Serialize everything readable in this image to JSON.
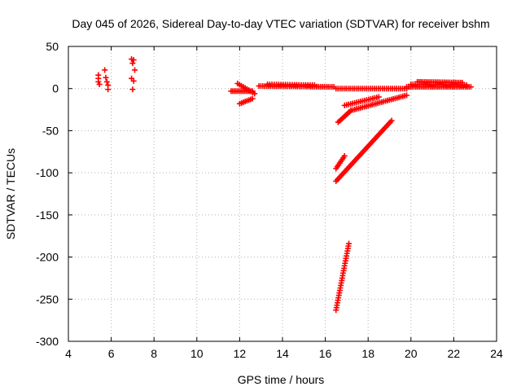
{
  "chart_data": {
    "type": "scatter",
    "title": "Day 045 of 2026, Sidereal Day-to-day VTEC variation (SDTVAR) for receiver bshm",
    "xlabel": "GPS time / hours",
    "ylabel": "SDTVAR / TECUs",
    "xlim": [
      4,
      24
    ],
    "ylim": [
      -300,
      50
    ],
    "xticks": [
      4,
      6,
      8,
      10,
      12,
      14,
      16,
      18,
      20,
      22,
      24
    ],
    "yticks": [
      -300,
      -250,
      -200,
      -150,
      -100,
      -50,
      0,
      50
    ],
    "grid": true,
    "marker": "+",
    "series_color": "#ff0000",
    "series": [
      {
        "name": "SDTVAR",
        "points": [
          [
            5.4,
            16
          ],
          [
            5.4,
            12
          ],
          [
            5.4,
            8
          ],
          [
            5.45,
            5
          ],
          [
            5.7,
            22
          ],
          [
            5.75,
            13
          ],
          [
            5.8,
            8
          ],
          [
            5.85,
            4
          ],
          [
            5.85,
            -1
          ],
          [
            6.95,
            35
          ],
          [
            7.05,
            34
          ],
          [
            7.0,
            30
          ],
          [
            7.1,
            22
          ],
          [
            6.95,
            12
          ],
          [
            7.05,
            9
          ],
          [
            7.0,
            -1
          ]
        ],
        "segments": [
          {
            "x0": 11.6,
            "y0": -3,
            "x1": 12.6,
            "y1": -3,
            "n": 14
          },
          {
            "x0": 11.9,
            "y0": 6,
            "x1": 12.7,
            "y1": -6,
            "n": 10
          },
          {
            "x0": 12.0,
            "y0": -18,
            "x1": 12.6,
            "y1": -12,
            "n": 8
          },
          {
            "x0": 12.9,
            "y0": 3,
            "x1": 16.4,
            "y1": 2,
            "n": 40
          },
          {
            "x0": 13.3,
            "y0": 5,
            "x1": 15.5,
            "y1": 4,
            "n": 22
          },
          {
            "x0": 16.5,
            "y0": 0,
            "x1": 19.8,
            "y1": 0,
            "n": 36
          },
          {
            "x0": 16.6,
            "y0": -40,
            "x1": 17.2,
            "y1": -26,
            "n": 10
          },
          {
            "x0": 17.2,
            "y0": -26,
            "x1": 19.8,
            "y1": -8,
            "n": 30
          },
          {
            "x0": 16.9,
            "y0": -20,
            "x1": 18.5,
            "y1": -10,
            "n": 18
          },
          {
            "x0": 16.5,
            "y0": -95,
            "x1": 16.9,
            "y1": -80,
            "n": 8
          },
          {
            "x0": 16.5,
            "y0": -110,
            "x1": 19.1,
            "y1": -38,
            "n": 40
          },
          {
            "x0": 16.5,
            "y0": -263,
            "x1": 17.1,
            "y1": -184,
            "n": 28
          },
          {
            "x0": 19.8,
            "y0": 2,
            "x1": 22.8,
            "y1": 2,
            "n": 36
          },
          {
            "x0": 20.3,
            "y0": 8,
            "x1": 22.4,
            "y1": 7,
            "n": 26
          },
          {
            "x0": 20.0,
            "y0": 5,
            "x1": 22.6,
            "y1": 4,
            "n": 28
          }
        ]
      }
    ]
  }
}
